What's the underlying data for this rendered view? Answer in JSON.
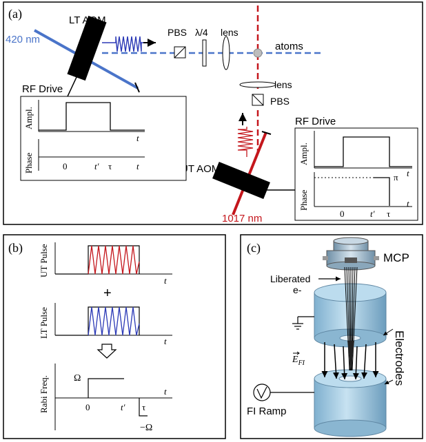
{
  "panel_a": {
    "tag": "(a)",
    "lt_aom": "LT AOM",
    "wavelength_blue": "420 nm",
    "pbs_top": "PBS",
    "quarter_wave": "λ/4",
    "lens_top": "lens",
    "atoms": "atoms",
    "lens_right": "lens",
    "pbs_right": "PBS",
    "rf_drive_left": "RF Drive",
    "rf_drive_right": "RF Drive",
    "ut_aom": "UT AOM",
    "wavelength_red": "1017 nm",
    "ampl": "Ampl.",
    "phase": "Phase",
    "t": "t",
    "zero": "0",
    "t_prime": "t′",
    "tau": "τ",
    "pi": "π"
  },
  "panel_b": {
    "tag": "(b)",
    "ut_pulse": "UT Pulse",
    "lt_pulse": "LT Pulse",
    "plus": "+",
    "rabi": "Rabi Freq.",
    "omega": "Ω",
    "neg_omega": "−Ω",
    "t": "t",
    "zero": "0",
    "t_prime": "t′",
    "tau": "τ"
  },
  "panel_c": {
    "tag": "(c)",
    "mcp": "MCP",
    "liberated": "Liberated",
    "electron": "e-",
    "electrodes": "Electrodes",
    "efield": "E",
    "efield_sub": "FI",
    "fi_ramp": "FI Ramp"
  },
  "colors": {
    "blue_beam": "#4a74c9",
    "red_beam": "#c4161c",
    "electrode": "#a9cde3"
  }
}
